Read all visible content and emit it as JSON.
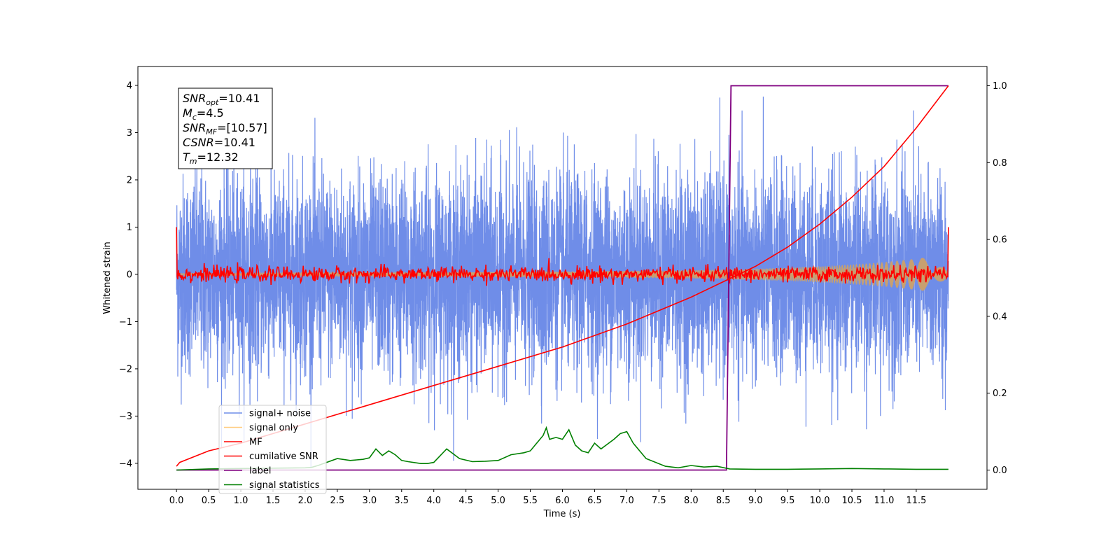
{
  "chart_data": {
    "type": "line",
    "xlabel": "Time (s)",
    "ylabel_left": "Whitened strain",
    "ylabel_right": "",
    "xlim": [
      -0.6,
      12.6
    ],
    "ylim_left": [
      -4.55,
      4.4
    ],
    "ylim_right": [
      -0.05,
      1.05
    ],
    "x_ticks": [
      0.0,
      0.5,
      1.0,
      1.5,
      2.0,
      2.5,
      3.0,
      3.5,
      4.0,
      4.5,
      5.0,
      5.5,
      6.0,
      6.5,
      7.0,
      7.5,
      8.0,
      8.5,
      9.0,
      9.5,
      10.0,
      10.5,
      11.0,
      11.5
    ],
    "x_tick_labels": [
      "0.0",
      "0.5",
      "1.0",
      "1.5",
      "2.0",
      "2.5",
      "3.0",
      "3.5",
      "4.0",
      "4.5",
      "5.0",
      "5.5",
      "6.0",
      "6.5",
      "7.0",
      "7.5",
      "8.0",
      "8.5",
      "9.0",
      "9.5",
      "10.0",
      "10.5",
      "11.0",
      "11.5"
    ],
    "y_ticks_left": [
      -4,
      -3,
      -2,
      -1,
      0,
      1,
      2,
      3,
      4
    ],
    "y_tick_labels_left": [
      "−4",
      "−3",
      "−2",
      "−1",
      "0",
      "1",
      "2",
      "3",
      "4"
    ],
    "y_ticks_right": [
      0.0,
      0.2,
      0.4,
      0.6,
      0.8,
      1.0
    ],
    "y_tick_labels_right": [
      "0.0",
      "0.2",
      "0.4",
      "0.6",
      "0.8",
      "1.0"
    ],
    "grid": false,
    "legend_position": "lower-left",
    "annotation": [
      {
        "symbol": "SNR",
        "sub": "opt",
        "value": "=10.41"
      },
      {
        "symbol": "M",
        "sub": "c",
        "value": "=4.5"
      },
      {
        "symbol": "SNR",
        "sub": "MF",
        "value": "=[10.57]"
      },
      {
        "symbol": "CSNR",
        "sub": "",
        "value": "=10.41"
      },
      {
        "symbol": "T",
        "sub": "m",
        "value": "=12.32"
      }
    ],
    "series": [
      {
        "name": "signal+ noise",
        "color": "#6f8de8",
        "axis": "left",
        "kind": "noise",
        "x_range": [
          0.0,
          12.0
        ],
        "amplitude_std": 1.05,
        "peak_range": [
          -4.1,
          4.0
        ]
      },
      {
        "name": "signal only",
        "color": "#c8a070",
        "axis": "left",
        "kind": "chirp_envelope",
        "x": [
          0.0,
          2.0,
          4.0,
          6.0,
          7.0,
          8.0,
          8.5,
          9.0,
          9.5,
          10.0,
          10.5,
          11.0,
          11.5,
          12.0
        ],
        "envelope": [
          0.02,
          0.03,
          0.04,
          0.06,
          0.07,
          0.09,
          0.1,
          0.12,
          0.14,
          0.17,
          0.21,
          0.26,
          0.33,
          0.42
        ]
      },
      {
        "name": "MF",
        "color": "#ff0000",
        "axis": "left",
        "kind": "noise_small",
        "x_range": [
          0.0,
          12.0
        ],
        "amplitude_std": 0.08,
        "start_value": 1.0,
        "end_value": 1.0
      },
      {
        "name": "cumilative SNR",
        "color": "#ff0000",
        "axis": "right",
        "x": [
          0.0,
          0.05,
          0.5,
          1.0,
          2.0,
          3.0,
          4.0,
          5.0,
          6.0,
          7.0,
          8.0,
          8.5,
          9.0,
          9.5,
          10.0,
          10.5,
          11.0,
          11.5,
          12.0
        ],
        "y": [
          0.01,
          0.02,
          0.05,
          0.07,
          0.12,
          0.17,
          0.22,
          0.27,
          0.32,
          0.38,
          0.45,
          0.49,
          0.53,
          0.58,
          0.64,
          0.71,
          0.79,
          0.89,
          1.0
        ]
      },
      {
        "name": "label",
        "color": "#800080",
        "axis": "right",
        "x": [
          0.0,
          8.55,
          8.62,
          12.0
        ],
        "y": [
          0.0,
          0.0,
          1.0,
          1.0
        ]
      },
      {
        "name": "signal statistics",
        "color": "#008000",
        "axis": "right",
        "x": [
          0.0,
          0.5,
          1.0,
          1.5,
          2.0,
          2.1,
          2.2,
          2.5,
          2.7,
          2.9,
          3.0,
          3.1,
          3.2,
          3.3,
          3.4,
          3.5,
          3.6,
          3.8,
          3.9,
          4.0,
          4.2,
          4.4,
          4.6,
          4.8,
          5.0,
          5.2,
          5.4,
          5.5,
          5.6,
          5.7,
          5.75,
          5.8,
          5.9,
          6.0,
          6.1,
          6.2,
          6.3,
          6.4,
          6.5,
          6.6,
          6.8,
          6.9,
          7.0,
          7.1,
          7.3,
          7.6,
          7.8,
          8.0,
          8.2,
          8.4,
          8.6,
          9.0,
          9.5,
          10.0,
          10.5,
          11.0,
          11.5,
          12.0
        ],
        "y": [
          0.0,
          0.003,
          0.004,
          0.005,
          0.006,
          0.007,
          0.012,
          0.03,
          0.025,
          0.028,
          0.032,
          0.055,
          0.038,
          0.05,
          0.04,
          0.025,
          0.022,
          0.017,
          0.017,
          0.02,
          0.055,
          0.03,
          0.022,
          0.023,
          0.025,
          0.04,
          0.045,
          0.05,
          0.07,
          0.09,
          0.11,
          0.08,
          0.085,
          0.08,
          0.105,
          0.065,
          0.05,
          0.045,
          0.07,
          0.055,
          0.08,
          0.095,
          0.1,
          0.07,
          0.03,
          0.01,
          0.006,
          0.012,
          0.008,
          0.01,
          0.003,
          0.002,
          0.002,
          0.003,
          0.004,
          0.003,
          0.002,
          0.002
        ]
      }
    ]
  }
}
